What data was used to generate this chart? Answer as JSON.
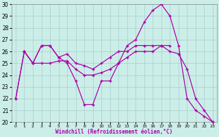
{
  "xlabel": "Windchill (Refroidissement éolien,°C)",
  "x_ticks": [
    0,
    1,
    2,
    3,
    4,
    5,
    6,
    7,
    8,
    9,
    10,
    11,
    12,
    13,
    14,
    15,
    16,
    17,
    18,
    19,
    20,
    21,
    22,
    23
  ],
  "ylim": [
    20,
    30
  ],
  "yticks": [
    20,
    21,
    22,
    23,
    24,
    25,
    26,
    27,
    28,
    29,
    30
  ],
  "bg_color": "#cceee8",
  "grid_color": "#aacccc",
  "line_color": "#aa00aa",
  "lines": [
    {
      "x": [
        0,
        1,
        2,
        3,
        4,
        5,
        6,
        7,
        8,
        9,
        10,
        11,
        12,
        13,
        14,
        15,
        16,
        17,
        18,
        19,
        20,
        21,
        22,
        23
      ],
      "y": [
        22,
        26,
        25,
        26.5,
        26.5,
        25.5,
        25,
        23.5,
        21.5,
        21.5,
        23.5,
        23.5,
        25,
        26.5,
        27,
        28.5,
        29.5,
        30,
        29,
        26.5,
        22,
        21,
        20.5,
        20
      ]
    },
    {
      "x": [
        0,
        1,
        2,
        3,
        4,
        5,
        6,
        7,
        8,
        9,
        10,
        11,
        12,
        13,
        14,
        15,
        16,
        17,
        18,
        19,
        20,
        21,
        22,
        23
      ],
      "y": [
        22,
        26,
        25,
        25,
        25,
        25.2,
        25.2,
        24.5,
        24,
        24,
        24.2,
        24.5,
        25,
        25.5,
        26,
        26,
        26,
        26.5,
        26,
        25.8,
        24.5,
        22,
        21,
        20
      ]
    },
    {
      "x": [
        1,
        2,
        3,
        4,
        5,
        6,
        7,
        8,
        9,
        10,
        11,
        12,
        13,
        14,
        15,
        16,
        17,
        18
      ],
      "y": [
        26,
        25,
        26.5,
        26.5,
        25.5,
        25.8,
        25,
        24.8,
        24.5,
        25,
        25.5,
        26,
        26,
        26.5,
        26.5,
        26.5,
        26.5,
        26.5
      ]
    }
  ]
}
